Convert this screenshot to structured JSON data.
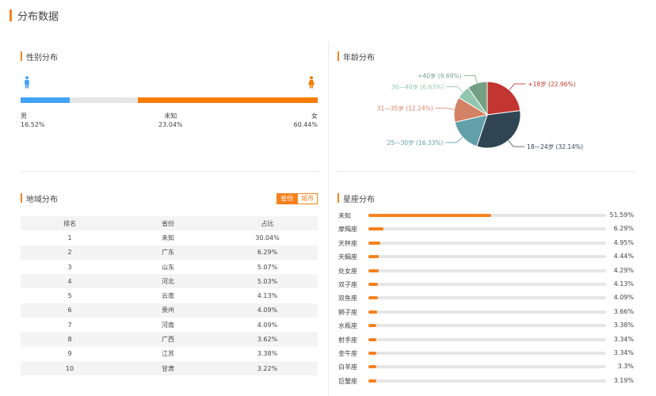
{
  "page_title": "分布数据",
  "colors": {
    "accent": "#f5821f",
    "male": "#41a3f5",
    "female": "#f57c00",
    "track": "#e6e6e6"
  },
  "gender": {
    "title": "性别分布",
    "items": [
      {
        "label": "男",
        "value": "16.52%",
        "fraction": 0.1652,
        "color": "#41a3f5"
      },
      {
        "label": "未知",
        "value": "23.04%",
        "fraction": 0.2304,
        "color": "#e6e6e6"
      },
      {
        "label": "女",
        "value": "60.44%",
        "fraction": 0.6044,
        "color": "#f57c00"
      }
    ],
    "icons": {
      "male": "male-person-icon",
      "female": "female-person-icon"
    }
  },
  "age": {
    "title": "年龄分布",
    "chart_data": {
      "type": "pie",
      "slices": [
        {
          "label": "+18岁 (22.96%)",
          "value": 22.96,
          "color": "#c23531"
        },
        {
          "label": "18—24岁 (32.14%)",
          "value": 32.14,
          "color": "#2f4554"
        },
        {
          "label": "25—30岁 (16.33%)",
          "value": 16.33,
          "color": "#61a0a8"
        },
        {
          "label": "31—35岁 (12.24%)",
          "value": 12.24,
          "color": "#d48265"
        },
        {
          "label": "36—40岁 (6.63%)",
          "value": 6.63,
          "color": "#91c7ae"
        },
        {
          "label": "+40岁 (9.69%)",
          "value": 9.69,
          "color": "#749f83"
        }
      ]
    }
  },
  "region": {
    "title": "地域分布",
    "tabs": [
      "省份",
      "城市"
    ],
    "active_tab": 0,
    "headers": [
      "排名",
      "省份",
      "占比"
    ],
    "rows": [
      [
        "1",
        "未知",
        "30.04%"
      ],
      [
        "2",
        "广东",
        "6.29%"
      ],
      [
        "3",
        "山东",
        "5.07%"
      ],
      [
        "4",
        "河北",
        "5.03%"
      ],
      [
        "5",
        "云南",
        "4.13%"
      ],
      [
        "6",
        "贵州",
        "4.09%"
      ],
      [
        "7",
        "河南",
        "4.09%"
      ],
      [
        "8",
        "广西",
        "3.62%"
      ],
      [
        "9",
        "江苏",
        "3.38%"
      ],
      [
        "10",
        "甘肃",
        "3.22%"
      ]
    ]
  },
  "zodiac": {
    "title": "星座分布",
    "items": [
      {
        "name": "未知",
        "value": "51.59%",
        "fraction": 0.5159
      },
      {
        "name": "摩羯座",
        "value": "6.29%",
        "fraction": 0.0629
      },
      {
        "name": "天秤座",
        "value": "4.95%",
        "fraction": 0.0495
      },
      {
        "name": "天蝎座",
        "value": "4.44%",
        "fraction": 0.0444
      },
      {
        "name": "处女座",
        "value": "4.29%",
        "fraction": 0.0429
      },
      {
        "name": "双子座",
        "value": "4.13%",
        "fraction": 0.0413
      },
      {
        "name": "双鱼座",
        "value": "4.09%",
        "fraction": 0.0409
      },
      {
        "name": "狮子座",
        "value": "3.66%",
        "fraction": 0.0366
      },
      {
        "name": "水瓶座",
        "value": "3.38%",
        "fraction": 0.0338
      },
      {
        "name": "射手座",
        "value": "3.34%",
        "fraction": 0.0334
      },
      {
        "name": "金牛座",
        "value": "3.34%",
        "fraction": 0.0334
      },
      {
        "name": "白羊座",
        "value": "3.3%",
        "fraction": 0.033
      },
      {
        "name": "巨蟹座",
        "value": "3.19%",
        "fraction": 0.0319
      }
    ]
  }
}
